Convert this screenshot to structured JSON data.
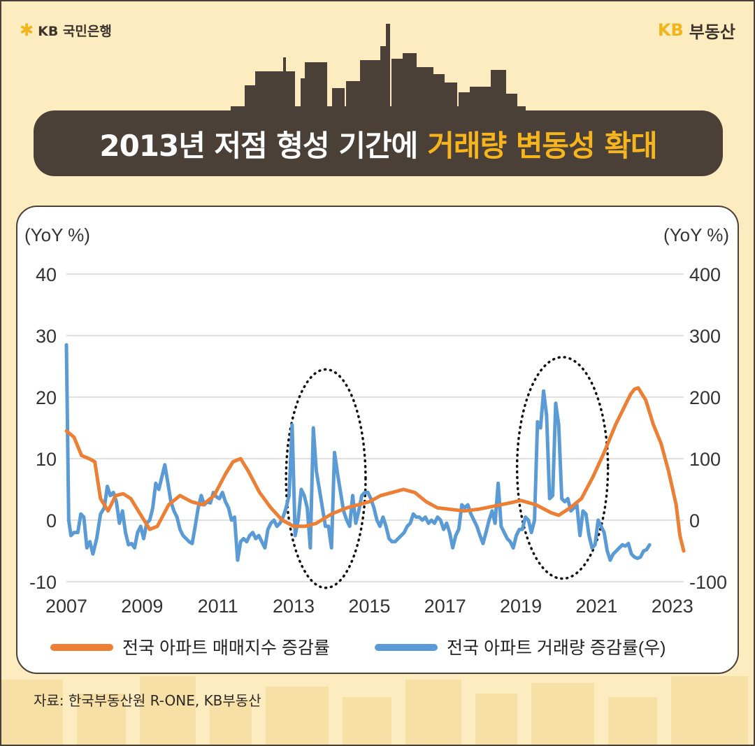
{
  "header": {
    "bank_logo_text": "KB 국민은행",
    "brand_kb": "KB",
    "brand_name": "부동산",
    "title_main": "2013년 저점 형성 기간에",
    "title_highlight": "거래량 변동성 확대",
    "colors": {
      "dark": "#4a4038",
      "accent": "#f7b51d",
      "background": "#fdecc0"
    }
  },
  "source": "자료: 한국부동산원 R-ONE, KB부동산",
  "chart_data": {
    "type": "line",
    "title": "",
    "xlabel": "",
    "left_axis": {
      "unit_label": "(YoY %)",
      "ylim": [
        -10,
        40
      ],
      "ticks": [
        40,
        30,
        20,
        10,
        0,
        -10
      ]
    },
    "right_axis": {
      "unit_label": "(YoY %)",
      "ylim": [
        -100,
        400
      ],
      "ticks": [
        400,
        300,
        200,
        100,
        0,
        -100
      ]
    },
    "xlim": [
      2007,
      2023.3
    ],
    "x_ticks": [
      "2007",
      "2009",
      "2011",
      "2013",
      "2015",
      "2017",
      "2019",
      "2021",
      "2023"
    ],
    "grid": "horizontal",
    "legend_position": "bottom",
    "series": [
      {
        "name": "전국 아파트 매매지수 증감률",
        "axis": "left",
        "color": "#ec7f34",
        "points": [
          [
            2007.0,
            14.5
          ],
          [
            2007.2,
            13.5
          ],
          [
            2007.4,
            10.5
          ],
          [
            2007.6,
            10.0
          ],
          [
            2007.75,
            9.5
          ],
          [
            2007.9,
            3.5
          ],
          [
            2008.1,
            1.5
          ],
          [
            2008.3,
            4.0
          ],
          [
            2008.5,
            4.3
          ],
          [
            2008.7,
            3.5
          ],
          [
            2009.0,
            0.5
          ],
          [
            2009.2,
            -1.5
          ],
          [
            2009.4,
            -1.0
          ],
          [
            2009.7,
            2.5
          ],
          [
            2010.0,
            4.0
          ],
          [
            2010.3,
            3.0
          ],
          [
            2010.6,
            2.5
          ],
          [
            2010.9,
            4.0
          ],
          [
            2011.2,
            7.5
          ],
          [
            2011.4,
            9.5
          ],
          [
            2011.6,
            10.0
          ],
          [
            2011.8,
            8.0
          ],
          [
            2012.1,
            4.5
          ],
          [
            2012.4,
            2.0
          ],
          [
            2012.7,
            0.0
          ],
          [
            2013.0,
            -1.0
          ],
          [
            2013.3,
            -1.0
          ],
          [
            2013.6,
            -0.5
          ],
          [
            2014.0,
            1.0
          ],
          [
            2014.4,
            2.0
          ],
          [
            2014.7,
            2.5
          ],
          [
            2015.0,
            3.0
          ],
          [
            2015.3,
            4.0
          ],
          [
            2015.6,
            4.5
          ],
          [
            2015.9,
            5.0
          ],
          [
            2016.2,
            4.5
          ],
          [
            2016.5,
            3.0
          ],
          [
            2016.8,
            2.0
          ],
          [
            2017.1,
            1.8
          ],
          [
            2017.5,
            1.5
          ],
          [
            2017.9,
            1.8
          ],
          [
            2018.3,
            2.3
          ],
          [
            2018.7,
            2.8
          ],
          [
            2019.0,
            3.2
          ],
          [
            2019.4,
            2.5
          ],
          [
            2019.8,
            1.2
          ],
          [
            2020.0,
            0.8
          ],
          [
            2020.3,
            2.0
          ],
          [
            2020.6,
            3.5
          ],
          [
            2020.9,
            7.0
          ],
          [
            2021.2,
            11.0
          ],
          [
            2021.5,
            15.5
          ],
          [
            2021.7,
            18.0
          ],
          [
            2021.9,
            20.5
          ],
          [
            2022.0,
            21.3
          ],
          [
            2022.1,
            21.5
          ],
          [
            2022.3,
            19.5
          ],
          [
            2022.5,
            15.5
          ],
          [
            2022.7,
            12.5
          ],
          [
            2022.9,
            8.0
          ],
          [
            2023.1,
            2.5
          ],
          [
            2023.2,
            -2.5
          ],
          [
            2023.3,
            -5.0
          ]
        ]
      },
      {
        "name": "전국 아파트 거래량 증감률(우)",
        "axis": "right",
        "color": "#5b9bd5",
        "points": [
          [
            2007.0,
            285
          ],
          [
            2007.06,
            0
          ],
          [
            2007.12,
            -25
          ],
          [
            2007.2,
            -20
          ],
          [
            2007.3,
            -20
          ],
          [
            2007.38,
            10
          ],
          [
            2007.46,
            5
          ],
          [
            2007.54,
            -45
          ],
          [
            2007.62,
            -35
          ],
          [
            2007.7,
            -55
          ],
          [
            2007.8,
            -30
          ],
          [
            2007.9,
            10
          ],
          [
            2008.0,
            20
          ],
          [
            2008.08,
            55
          ],
          [
            2008.16,
            40
          ],
          [
            2008.24,
            45
          ],
          [
            2008.32,
            30
          ],
          [
            2008.4,
            -5
          ],
          [
            2008.48,
            15
          ],
          [
            2008.56,
            -20
          ],
          [
            2008.64,
            -40
          ],
          [
            2008.72,
            -38
          ],
          [
            2008.8,
            -45
          ],
          [
            2008.88,
            -20
          ],
          [
            2008.96,
            -10
          ],
          [
            2009.04,
            -30
          ],
          [
            2009.12,
            -5
          ],
          [
            2009.2,
            0
          ],
          [
            2009.28,
            20
          ],
          [
            2009.36,
            60
          ],
          [
            2009.44,
            50
          ],
          [
            2009.52,
            70
          ],
          [
            2009.6,
            90
          ],
          [
            2009.68,
            60
          ],
          [
            2009.76,
            30
          ],
          [
            2009.84,
            15
          ],
          [
            2009.92,
            5
          ],
          [
            2010.0,
            -15
          ],
          [
            2010.08,
            -25
          ],
          [
            2010.16,
            -30
          ],
          [
            2010.24,
            -35
          ],
          [
            2010.32,
            -38
          ],
          [
            2010.4,
            -10
          ],
          [
            2010.48,
            20
          ],
          [
            2010.56,
            40
          ],
          [
            2010.64,
            25
          ],
          [
            2010.72,
            30
          ],
          [
            2010.8,
            28
          ],
          [
            2010.88,
            45
          ],
          [
            2010.96,
            38
          ],
          [
            2011.04,
            35
          ],
          [
            2011.12,
            45
          ],
          [
            2011.2,
            30
          ],
          [
            2011.28,
            20
          ],
          [
            2011.36,
            0
          ],
          [
            2011.44,
            5
          ],
          [
            2011.52,
            -65
          ],
          [
            2011.6,
            -35
          ],
          [
            2011.68,
            -30
          ],
          [
            2011.76,
            -35
          ],
          [
            2011.84,
            -25
          ],
          [
            2011.92,
            -20
          ],
          [
            2012.0,
            -30
          ],
          [
            2012.08,
            -25
          ],
          [
            2012.16,
            -35
          ],
          [
            2012.24,
            -45
          ],
          [
            2012.32,
            -15
          ],
          [
            2012.4,
            -5
          ],
          [
            2012.48,
            0
          ],
          [
            2012.56,
            -10
          ],
          [
            2012.64,
            -5
          ],
          [
            2012.72,
            5
          ],
          [
            2012.8,
            20
          ],
          [
            2012.88,
            40
          ],
          [
            2012.96,
            155
          ],
          [
            2013.04,
            -25
          ],
          [
            2013.12,
            0
          ],
          [
            2013.2,
            50
          ],
          [
            2013.28,
            40
          ],
          [
            2013.36,
            20
          ],
          [
            2013.44,
            -45
          ],
          [
            2013.52,
            150
          ],
          [
            2013.6,
            80
          ],
          [
            2013.68,
            50
          ],
          [
            2013.76,
            20
          ],
          [
            2013.84,
            -10
          ],
          [
            2013.92,
            -10
          ],
          [
            2014.0,
            -45
          ],
          [
            2014.08,
            110
          ],
          [
            2014.16,
            75
          ],
          [
            2014.24,
            45
          ],
          [
            2014.32,
            15
          ],
          [
            2014.4,
            0
          ],
          [
            2014.48,
            -10
          ],
          [
            2014.56,
            40
          ],
          [
            2014.64,
            -5
          ],
          [
            2014.72,
            15
          ],
          [
            2014.8,
            40
          ],
          [
            2014.88,
            45
          ],
          [
            2014.96,
            45
          ],
          [
            2015.04,
            35
          ],
          [
            2015.12,
            20
          ],
          [
            2015.2,
            0
          ],
          [
            2015.28,
            -10
          ],
          [
            2015.36,
            5
          ],
          [
            2015.44,
            -10
          ],
          [
            2015.52,
            -30
          ],
          [
            2015.6,
            -35
          ],
          [
            2015.68,
            -35
          ],
          [
            2015.76,
            -30
          ],
          [
            2015.84,
            -25
          ],
          [
            2015.92,
            -20
          ],
          [
            2016.0,
            -10
          ],
          [
            2016.08,
            -5
          ],
          [
            2016.16,
            10
          ],
          [
            2016.24,
            5
          ],
          [
            2016.32,
            5
          ],
          [
            2016.4,
            0
          ],
          [
            2016.48,
            5
          ],
          [
            2016.56,
            -5
          ],
          [
            2016.64,
            0
          ],
          [
            2016.72,
            -5
          ],
          [
            2016.8,
            5
          ],
          [
            2016.88,
            0
          ],
          [
            2016.96,
            -15
          ],
          [
            2017.04,
            -5
          ],
          [
            2017.12,
            -20
          ],
          [
            2017.2,
            -45
          ],
          [
            2017.28,
            -25
          ],
          [
            2017.36,
            -15
          ],
          [
            2017.44,
            25
          ],
          [
            2017.52,
            20
          ],
          [
            2017.6,
            25
          ],
          [
            2017.68,
            10
          ],
          [
            2017.76,
            0
          ],
          [
            2017.84,
            -10
          ],
          [
            2017.92,
            -25
          ],
          [
            2018.0,
            -38
          ],
          [
            2018.08,
            -20
          ],
          [
            2018.16,
            0
          ],
          [
            2018.24,
            15
          ],
          [
            2018.32,
            -5
          ],
          [
            2018.4,
            60
          ],
          [
            2018.48,
            -10
          ],
          [
            2018.56,
            -20
          ],
          [
            2018.64,
            -30
          ],
          [
            2018.72,
            -35
          ],
          [
            2018.8,
            -45
          ],
          [
            2018.88,
            -25
          ],
          [
            2018.96,
            -15
          ],
          [
            2019.04,
            -15
          ],
          [
            2019.12,
            5
          ],
          [
            2019.2,
            0
          ],
          [
            2019.28,
            -20
          ],
          [
            2019.36,
            0
          ],
          [
            2019.44,
            160
          ],
          [
            2019.52,
            150
          ],
          [
            2019.6,
            210
          ],
          [
            2019.68,
            170
          ],
          [
            2019.76,
            35
          ],
          [
            2019.84,
            40
          ],
          [
            2019.92,
            190
          ],
          [
            2020.0,
            155
          ],
          [
            2020.08,
            35
          ],
          [
            2020.16,
            30
          ],
          [
            2020.24,
            35
          ],
          [
            2020.32,
            15
          ],
          [
            2020.4,
            20
          ],
          [
            2020.48,
            25
          ],
          [
            2020.56,
            -25
          ],
          [
            2020.64,
            15
          ],
          [
            2020.72,
            10
          ],
          [
            2020.8,
            -25
          ],
          [
            2020.88,
            -45
          ],
          [
            2020.96,
            -40
          ],
          [
            2021.04,
            0
          ],
          [
            2021.12,
            -10
          ],
          [
            2021.2,
            -20
          ],
          [
            2021.28,
            -50
          ],
          [
            2021.36,
            -65
          ],
          [
            2021.44,
            -55
          ],
          [
            2021.52,
            -50
          ],
          [
            2021.6,
            -45
          ],
          [
            2021.68,
            -40
          ],
          [
            2021.76,
            -42
          ],
          [
            2021.84,
            -38
          ],
          [
            2021.92,
            -55
          ],
          [
            2022.0,
            -60
          ],
          [
            2022.08,
            -62
          ],
          [
            2022.16,
            -60
          ],
          [
            2022.24,
            -50
          ],
          [
            2022.32,
            -48
          ],
          [
            2022.4,
            -40
          ]
        ]
      }
    ],
    "highlight_ellipses": [
      {
        "x_range": [
          2012.8,
          2014.9
        ],
        "y_range_right": [
          -110,
          245
        ]
      },
      {
        "x_range": [
          2018.9,
          2021.3
        ],
        "y_range_right": [
          -95,
          265
        ]
      }
    ]
  }
}
